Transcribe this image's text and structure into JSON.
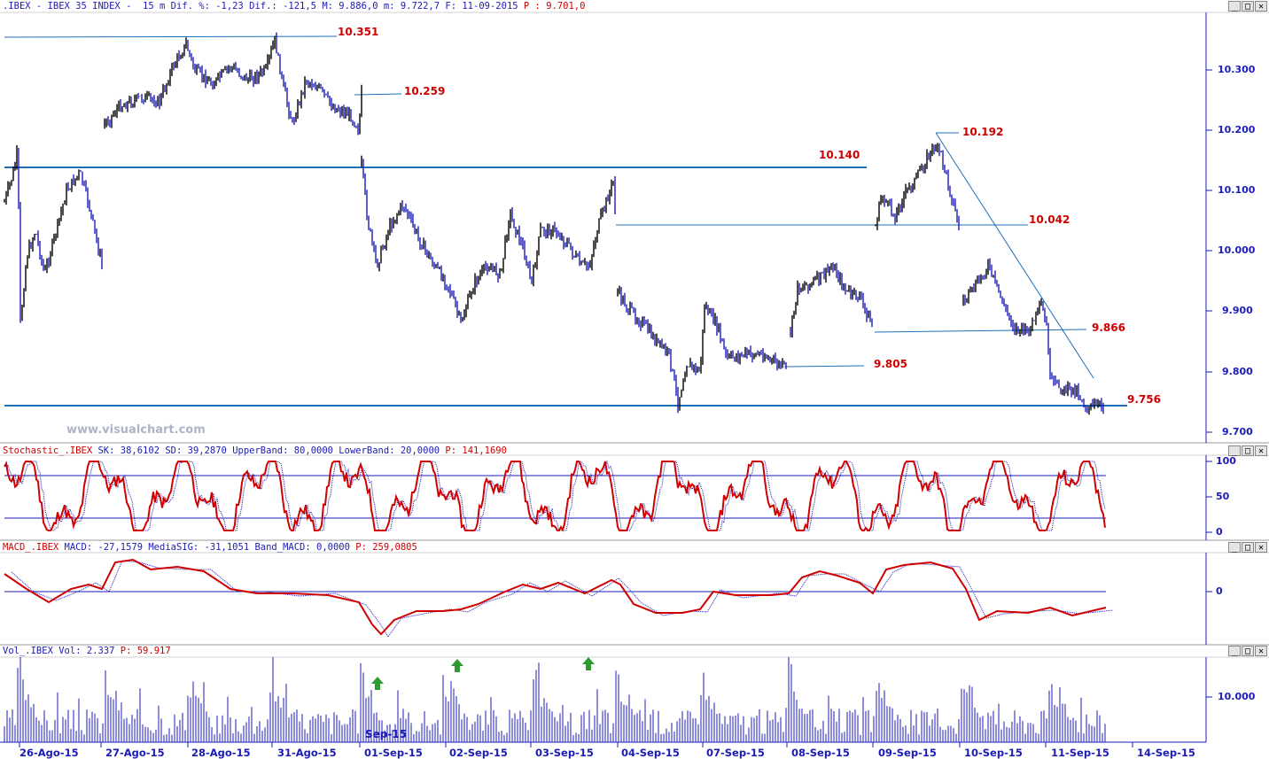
{
  "header": {
    "title_text": ".IBEX - IBEX 35 INDEX -  15 m Dif. %: -1,23 Dif.: -121,5 M: 9.886,0 m: 9.722,7 F: 11-09-2015",
    "price_text": " P : 9.701,0"
  },
  "price_axis": {
    "labels": [
      "10.300",
      "10.200",
      "10.100",
      "10.000",
      "9.900",
      "9.800",
      "9.700"
    ]
  },
  "levels": [
    "10.351",
    "10.259",
    "10.140",
    "10.192",
    "10.042",
    "9.866",
    "9.805",
    "9.756"
  ],
  "watermark": "www.visualchart.com",
  "stochastic": {
    "name": "Stochastic_.IBEX",
    "header_text": " SK: 38,6102 SD: 39,2870 UpperBand: 80,0000 LowerBand: 20,0000",
    "p_text": " P: 141,1690",
    "axis": [
      "100",
      "50",
      "0"
    ]
  },
  "macd": {
    "name": "MACD_.IBEX",
    "header_text": " MACD: -27,1579 MediaSIG: -31,1051 Band_MACD: 0,0000",
    "p_text": " P: 259,0805",
    "axis": [
      "0"
    ]
  },
  "volume": {
    "name": "Vol_.IBEX",
    "header_text": " Vol: 2.337",
    "p_text": " P: 59.917",
    "axis": [
      "10.000"
    ],
    "overlay_label": "Sep-15"
  },
  "dates": [
    "26-Ago-15",
    "27-Ago-15",
    "28-Ago-15",
    "31-Ago-15",
    "01-Sep-15",
    "02-Sep-15",
    "03-Sep-15",
    "04-Sep-15",
    "07-Sep-15",
    "08-Sep-15",
    "09-Sep-15",
    "10-Sep-15",
    "11-Sep-15",
    "14-Sep-15"
  ],
  "window_buttons": [
    "_",
    "□",
    "✕"
  ],
  "colors": {
    "axis": "#1b1bb8",
    "level": "#d00000",
    "bull": "#000000",
    "bear": "#1b1bb8",
    "stoch": "#d00000",
    "signal": "#1b1bb8",
    "up_arrow": "#2f9a2f"
  }
}
